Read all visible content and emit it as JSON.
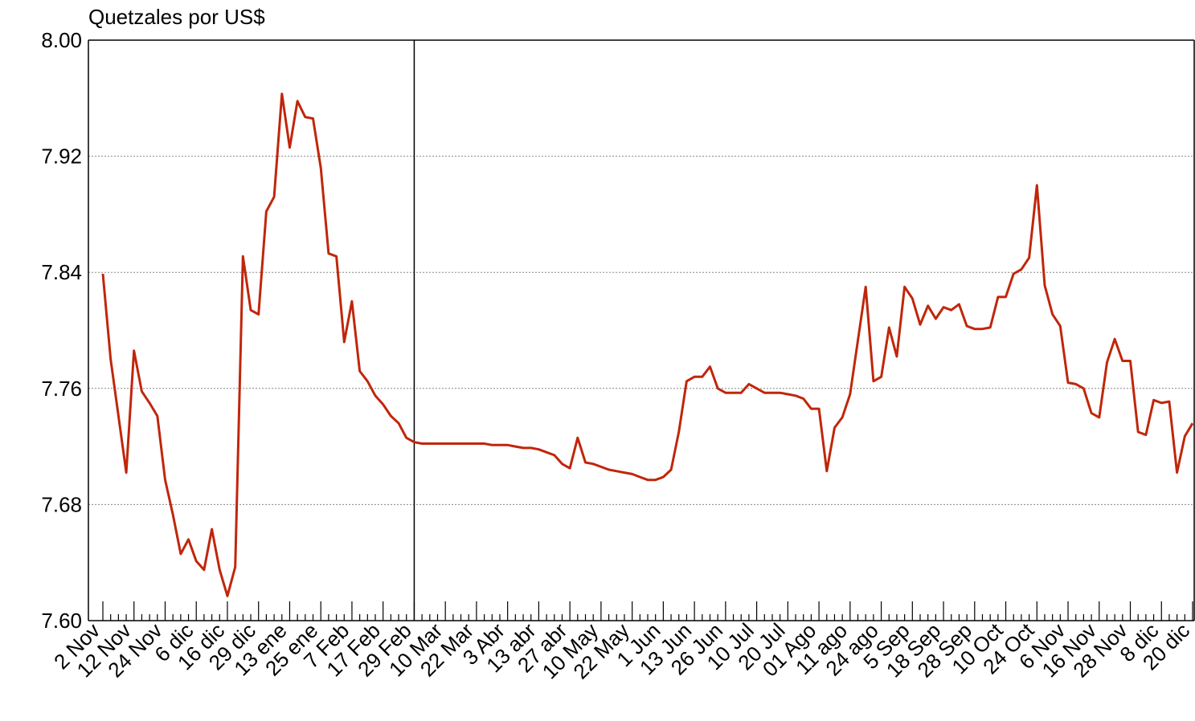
{
  "chart_data": {
    "type": "line",
    "title": "Quetzales por US$",
    "categories": [
      "2 Nov",
      null,
      null,
      null,
      "12 Nov",
      null,
      null,
      null,
      "24 Nov",
      null,
      null,
      null,
      "6 dic",
      null,
      null,
      null,
      "16 dic",
      null,
      null,
      null,
      "29 dic",
      null,
      null,
      null,
      "13 ene",
      null,
      null,
      null,
      "25 ene",
      null,
      null,
      null,
      "7 Feb",
      null,
      null,
      null,
      "17 Feb",
      null,
      null,
      null,
      "29 Feb",
      null,
      null,
      null,
      "10 Mar",
      null,
      null,
      null,
      "22 Mar",
      null,
      null,
      null,
      "3 Abr",
      null,
      null,
      null,
      "13 abr",
      null,
      null,
      null,
      "27 abr",
      null,
      null,
      null,
      "10 May",
      null,
      null,
      null,
      "22 May",
      null,
      null,
      null,
      "1 Jun",
      null,
      null,
      null,
      "13 Jun",
      null,
      null,
      null,
      "26 Jun",
      null,
      null,
      null,
      "10 Jul",
      null,
      null,
      null,
      "20 Jul",
      null,
      null,
      null,
      "01 Ago",
      null,
      null,
      null,
      "11 ago",
      null,
      null,
      null,
      "24 ago",
      null,
      null,
      null,
      "5 Sep",
      null,
      null,
      null,
      "18 Sep",
      null,
      null,
      null,
      "28 Sep",
      null,
      null,
      null,
      "10 Oct",
      null,
      null,
      null,
      "24 Oct",
      null,
      null,
      null,
      "6 Nov",
      null,
      null,
      null,
      "16 Nov",
      null,
      null,
      null,
      "28 Nov",
      null,
      null,
      null,
      "8 dic",
      null,
      null,
      null,
      "20 dic"
    ],
    "series": [
      {
        "name": "Quetzales por US$",
        "color": "#c0260b",
        "values": [
          7.839,
          7.78,
          7.741,
          7.702,
          7.786,
          7.758,
          7.75,
          7.741,
          7.697,
          7.673,
          7.646,
          7.656,
          7.641,
          7.635,
          7.663,
          7.635,
          7.617,
          7.637,
          7.851,
          7.814,
          7.811,
          7.882,
          7.892,
          7.963,
          7.926,
          7.958,
          7.947,
          7.946,
          7.912,
          7.853,
          7.851,
          7.792,
          7.82,
          7.772,
          7.765,
          7.755,
          7.749,
          7.741,
          7.736,
          7.726,
          7.723,
          7.722,
          7.722,
          7.722,
          7.722,
          7.722,
          7.722,
          7.722,
          7.722,
          7.722,
          7.721,
          7.721,
          7.721,
          7.72,
          7.719,
          7.719,
          7.718,
          7.716,
          7.714,
          7.708,
          7.705,
          7.726,
          7.709,
          7.708,
          7.706,
          7.704,
          7.703,
          7.702,
          7.701,
          7.699,
          7.697,
          7.697,
          7.699,
          7.704,
          7.73,
          7.765,
          7.768,
          7.768,
          7.775,
          7.76,
          7.757,
          7.757,
          7.757,
          7.763,
          7.76,
          7.757,
          7.757,
          7.757,
          7.756,
          7.755,
          7.753,
          7.746,
          7.746,
          7.703,
          7.733,
          7.74,
          7.756,
          7.793,
          7.83,
          7.765,
          7.768,
          7.802,
          7.782,
          7.83,
          7.822,
          7.804,
          7.817,
          7.808,
          7.816,
          7.814,
          7.818,
          7.803,
          7.801,
          7.801,
          7.802,
          7.823,
          7.823,
          7.839,
          7.842,
          7.85,
          7.9,
          7.831,
          7.811,
          7.803,
          7.764,
          7.763,
          7.76,
          7.743,
          7.74,
          7.778,
          7.794,
          7.779,
          7.779,
          7.73,
          7.728,
          7.752,
          7.75,
          7.751,
          7.702,
          7.727,
          7.736
        ]
      }
    ],
    "ylim": [
      7.6,
      8.0
    ],
    "yticks": [
      {
        "value": 7.6,
        "label": "7.60"
      },
      7.68,
      7.76,
      7.84,
      7.92,
      {
        "value": 8.0,
        "label": "8.00"
      }
    ],
    "grid": true
  }
}
